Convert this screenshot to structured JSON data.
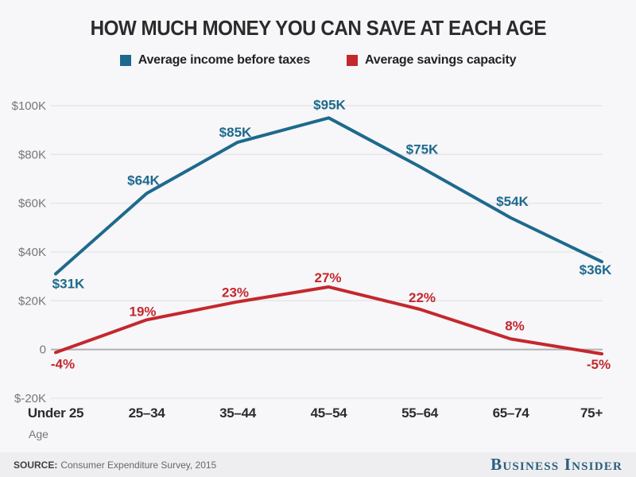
{
  "title": "HOW MUCH MONEY YOU CAN SAVE AT EACH AGE",
  "legend": [
    {
      "label": "Average income before taxes",
      "color": "#1d6a8d"
    },
    {
      "label": "Average savings capacity",
      "color": "#c3282d"
    }
  ],
  "chart_data": {
    "type": "line",
    "categories": [
      "Under 25",
      "25–34",
      "35–44",
      "45–54",
      "55–64",
      "65–74",
      "75+"
    ],
    "xlabel": "Age",
    "y_axis": {
      "tick_labels": [
        "$100K",
        "$80K",
        "$60K",
        "$40K",
        "$20K",
        "0",
        "$-20K"
      ],
      "tick_values": [
        100,
        80,
        60,
        40,
        20,
        0,
        -20
      ],
      "units": "thousands of USD",
      "ylim": [
        -20,
        105
      ]
    },
    "grid": "horizontal",
    "legend_position": "top-center",
    "series": [
      {
        "name": "Average income before taxes",
        "color": "#1d6a8d",
        "values_k": [
          31,
          64,
          85,
          95,
          75,
          54,
          36
        ],
        "labels": [
          "$31K",
          "$64K",
          "$85K",
          "$95K",
          "$75K",
          "$54K",
          "$36K"
        ]
      },
      {
        "name": "Average savings capacity",
        "color": "#c3282d",
        "values_pct_of_income": [
          -4,
          19,
          23,
          27,
          22,
          8,
          -5
        ],
        "plotted_values_k": [
          -1.24,
          12.16,
          19.55,
          25.65,
          16.5,
          4.32,
          -1.8
        ],
        "labels": [
          "-4%",
          "19%",
          "23%",
          "27%",
          "22%",
          "8%",
          "-5%"
        ]
      }
    ]
  },
  "theme": {
    "background": "#f7f6f8",
    "footer_background": "#eeedef",
    "grid_line": "#e5e4e8",
    "zero_line": "#b1b0b4",
    "axis_text": "#76767a",
    "tick_text": "#2c2c2e",
    "title_text": "#2b2b2b",
    "brand_color": "#27607f"
  },
  "footer": {
    "source_label": "SOURCE:",
    "source_text": "Consumer Expenditure Survey, 2015",
    "brand": "Business Insider"
  }
}
